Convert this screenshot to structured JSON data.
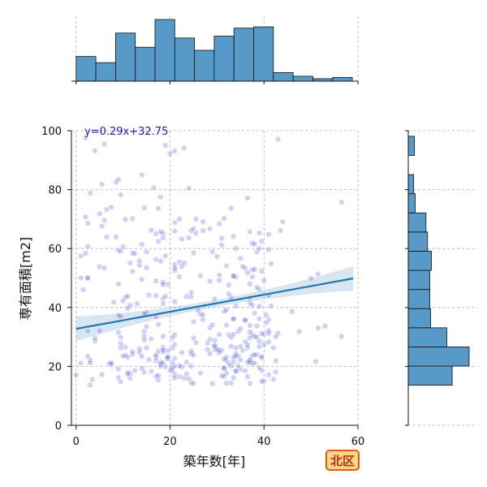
{
  "chart_data": {
    "type": "scatter",
    "title": "",
    "xlabel": "築年数[年]",
    "ylabel": "専有面積[m2]",
    "xlim": [
      -1,
      60
    ],
    "ylim": [
      0,
      100
    ],
    "xticks": [
      0,
      20,
      40,
      60
    ],
    "yticks": [
      0,
      20,
      40,
      60,
      80,
      100
    ],
    "grid": true,
    "grid_style": "dashed",
    "point_color": "#2020c8",
    "bar_color": "#5799c7",
    "regression": {
      "equation": "y=0.29x+32.75",
      "slope": 0.29,
      "intercept": 32.75,
      "x_range": [
        0,
        59
      ],
      "color": "#1f77b4",
      "ci_band": true
    },
    "x_marginal_histogram": {
      "bin_edges": [
        0,
        4.2,
        8.4,
        12.6,
        16.8,
        21,
        25.2,
        29.4,
        33.6,
        37.8,
        42,
        46.2,
        50.4,
        54.6,
        58.8
      ],
      "counts": [
        40,
        30,
        78,
        55,
        100,
        70,
        50,
        73,
        86,
        88,
        14,
        8,
        4,
        6
      ]
    },
    "y_marginal_histogram": {
      "bin_edges": [
        13.6,
        20.1,
        26.6,
        33.1,
        39.6,
        46.1,
        52.6,
        59.1,
        65.6,
        72.1,
        78.6,
        85.1,
        91.6,
        98.1
      ],
      "counts": [
        57,
        79,
        50,
        29,
        28,
        28,
        30,
        25,
        23,
        9,
        7,
        0,
        8
      ]
    },
    "scatter_points": [],
    "region_badge": "北区"
  }
}
